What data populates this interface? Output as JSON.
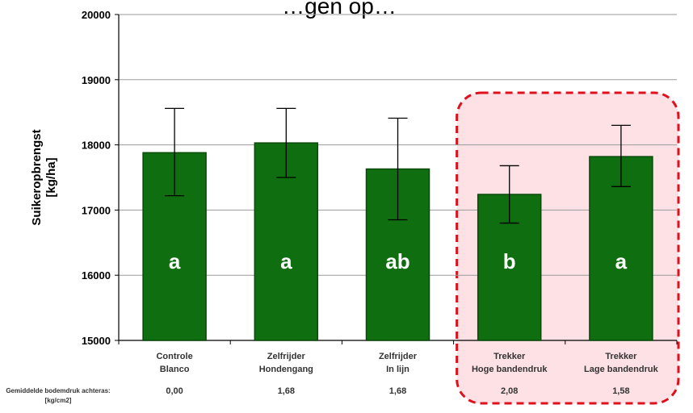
{
  "chart_data": {
    "type": "bar",
    "title": "…gen op…",
    "ylabel": "Suikeropbrengst [kg/ha]",
    "ylabel_lines": [
      "Suikeropbrengst",
      "[kg/ha]"
    ],
    "ylim": [
      15000,
      20000
    ],
    "yticks": [
      15000,
      16000,
      17000,
      18000,
      19000,
      20000
    ],
    "grid": true,
    "categories": [
      [
        "Controle",
        "Blanco"
      ],
      [
        "Zelfrijder",
        "Hondengang"
      ],
      [
        "Zelfrijder",
        "In lijn"
      ],
      [
        "Trekker",
        "Hoge bandendruk"
      ],
      [
        "Trekker",
        "Lage bandendruk"
      ]
    ],
    "values": [
      17880,
      18030,
      17630,
      17240,
      17820
    ],
    "error_low": [
      17220,
      17500,
      16850,
      16800,
      17360
    ],
    "error_high": [
      18560,
      18560,
      18410,
      17680,
      18300
    ],
    "significance_letters": [
      "a",
      "a",
      "ab",
      "b",
      "a"
    ],
    "pressure_label_lines": [
      "Gemiddelde bodemdruk achteras:",
      "[kg/cm2]"
    ],
    "pressure_values": [
      "0,00",
      "1,68",
      "1,68",
      "2,08",
      "1,58"
    ],
    "highlight": {
      "from_category_index": 3,
      "to_category_index": 4
    },
    "colors": {
      "bar_fill": "#0f6e0f",
      "bar_stroke": "#0a4a0a",
      "grid": "#9a9a9a",
      "highlight_fill": "#fde1e4",
      "highlight_stroke": "#e0101d",
      "letter": "#ffffff"
    }
  }
}
